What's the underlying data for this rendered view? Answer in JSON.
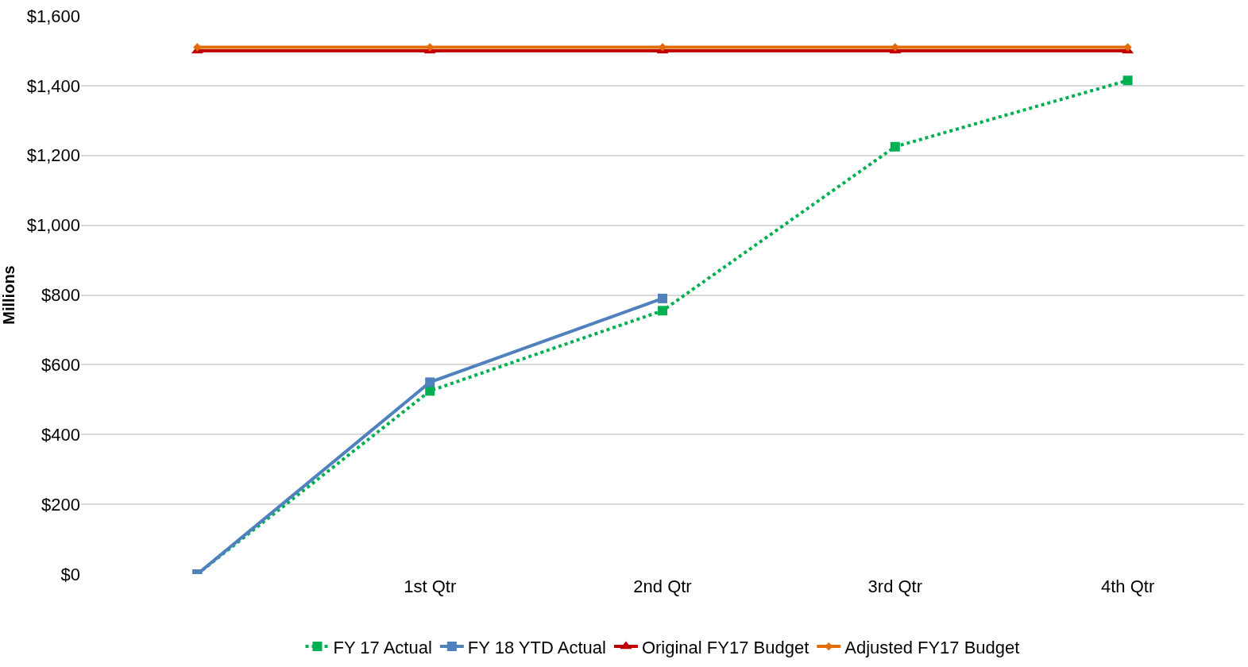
{
  "chart_data": {
    "type": "line",
    "ylabel": "Millions",
    "categories": [
      null,
      "1st Qtr",
      "2nd Qtr",
      "3rd Qtr",
      "4th Qtr"
    ],
    "series": [
      {
        "name": "FY 17 Actual",
        "color": "#00b050",
        "values": [
          0,
          525,
          755,
          1225,
          1415
        ],
        "marker": "square",
        "line_style": "dotted"
      },
      {
        "name": "FY 18 YTD Actual",
        "color": "#4f81bd",
        "values": [
          0,
          550,
          790,
          null,
          null
        ],
        "marker": "square",
        "line_style": "solid"
      },
      {
        "name": "Original FY17 Budget",
        "color": "#c00000",
        "values": [
          1500,
          1500,
          1500,
          1500,
          1500
        ],
        "marker": "triangle",
        "line_style": "solid"
      },
      {
        "name": "Adjusted FY17 Budget",
        "color": "#e36c09",
        "values": [
          1510,
          1510,
          1510,
          1510,
          1510
        ],
        "marker": "diamond",
        "line_style": "solid"
      }
    ],
    "ylim": [
      0,
      1600
    ],
    "yticks": [
      {
        "value": 0,
        "label": "$0"
      },
      {
        "value": 200,
        "label": "$200"
      },
      {
        "value": 400,
        "label": "$400"
      },
      {
        "value": 600,
        "label": "$600"
      },
      {
        "value": 800,
        "label": "$800"
      },
      {
        "value": 1000,
        "label": "$1,000"
      },
      {
        "value": 1200,
        "label": "$1,200"
      },
      {
        "value": 1400,
        "label": "$1,400"
      },
      {
        "value": 1600,
        "label": "$1,600"
      }
    ],
    "grid": "y",
    "legend": "bottom"
  }
}
